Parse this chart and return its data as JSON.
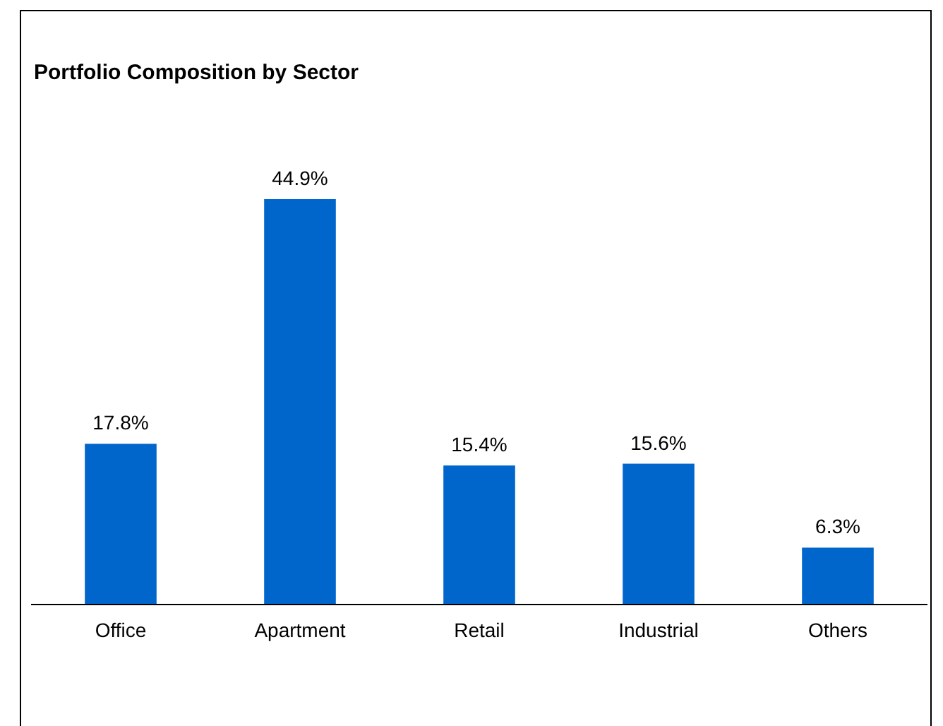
{
  "chart_data": {
    "type": "bar",
    "title": "Portfolio Composition by Sector",
    "categories": [
      "Office",
      "Apartment",
      "Retail",
      "Industrial",
      "Others"
    ],
    "values": [
      17.8,
      44.9,
      15.4,
      15.6,
      6.3
    ],
    "value_labels": [
      "17.8%",
      "44.9%",
      "15.4%",
      "15.6%",
      "6.3%"
    ],
    "color": "#0066cc"
  }
}
